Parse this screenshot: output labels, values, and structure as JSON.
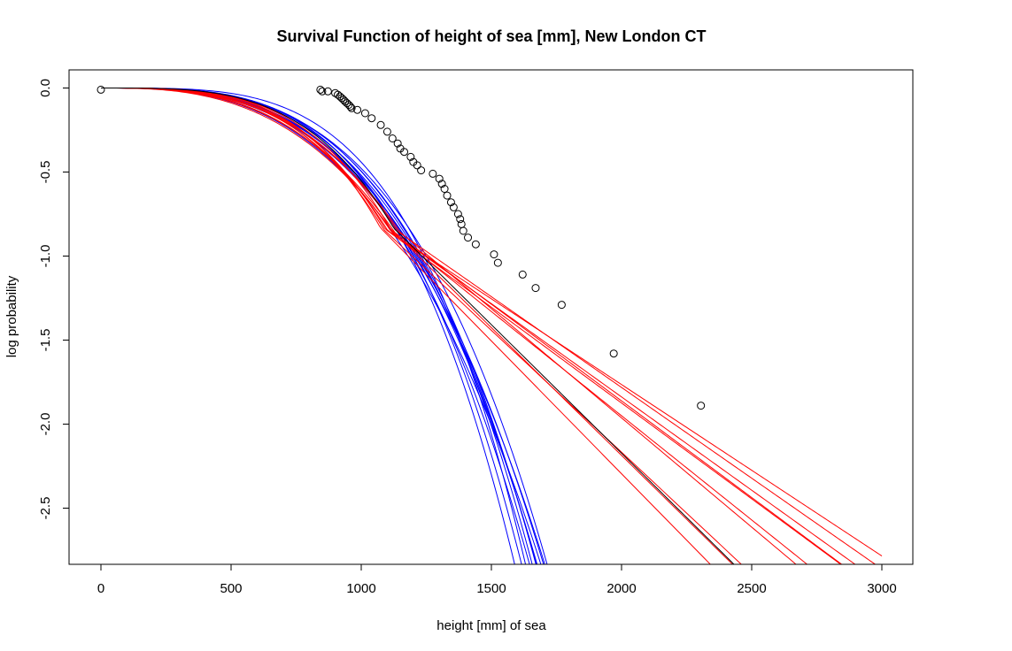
{
  "chart_data": {
    "type": "scatter",
    "title": "Survival Function of height of sea [mm], New London CT",
    "xlabel": "height [mm] of sea",
    "ylabel": "log probability",
    "xlim": [
      0,
      3000
    ],
    "ylim": [
      -2.85,
      0.05
    ],
    "xticks": [
      0,
      500,
      1000,
      1500,
      2000,
      2500,
      3000
    ],
    "xtick_labels": [
      "0",
      "500",
      "1000",
      "1500",
      "2000",
      "2500",
      "3000"
    ],
    "yticks": [
      0.0,
      -0.5,
      -1.0,
      -1.5,
      -2.0,
      -2.5
    ],
    "ytick_labels": [
      "0.0",
      "-0.5",
      "-1.0",
      "-1.5",
      "-2.0",
      "-2.5"
    ],
    "grid": false,
    "colors": {
      "points": "#000000",
      "black_curve": "#000000",
      "blue_curves": "#0000ff",
      "red_curves": "#ff0000"
    },
    "points": {
      "x": [
        0,
        843,
        850,
        872,
        900,
        910,
        918,
        925,
        932,
        938,
        945,
        952,
        958,
        963,
        985,
        1015,
        1040,
        1075,
        1100,
        1120,
        1140,
        1150,
        1165,
        1190,
        1200,
        1215,
        1230,
        1275,
        1300,
        1310,
        1320,
        1330,
        1345,
        1355,
        1372,
        1380,
        1385,
        1392,
        1410,
        1440,
        1510,
        1525,
        1620,
        1670,
        1770,
        1970,
        2305
      ],
      "y": [
        -0.01,
        -0.01,
        -0.02,
        -0.02,
        -0.03,
        -0.04,
        -0.05,
        -0.06,
        -0.07,
        -0.08,
        -0.09,
        -0.1,
        -0.11,
        -0.12,
        -0.13,
        -0.15,
        -0.18,
        -0.22,
        -0.26,
        -0.3,
        -0.33,
        -0.36,
        -0.38,
        -0.41,
        -0.44,
        -0.46,
        -0.49,
        -0.51,
        -0.54,
        -0.57,
        -0.6,
        -0.64,
        -0.68,
        -0.71,
        -0.75,
        -0.78,
        -0.81,
        -0.85,
        -0.89,
        -0.93,
        -0.99,
        -1.04,
        -1.11,
        -1.19,
        -1.29,
        -1.58,
        -1.89
      ]
    },
    "black_curve": {
      "scale": 1185,
      "shape": 3.5,
      "tail": 1.53
    },
    "blue_curves": [
      {
        "scale": 1210,
        "shape": 3.2
      },
      {
        "scale": 1220,
        "shape": 3.3
      },
      {
        "scale": 1190,
        "shape": 3.6
      },
      {
        "scale": 1205,
        "shape": 3.0
      },
      {
        "scale": 1230,
        "shape": 3.4
      },
      {
        "scale": 1200,
        "shape": 3.5
      },
      {
        "scale": 1215,
        "shape": 3.1
      },
      {
        "scale": 1195,
        "shape": 3.25
      },
      {
        "scale": 1225,
        "shape": 3.45
      },
      {
        "scale": 1250,
        "shape": 3.3
      },
      {
        "scale": 1180,
        "shape": 2.9
      },
      {
        "scale": 1240,
        "shape": 3.8
      }
    ],
    "red_curves": [
      {
        "scale": 1160,
        "shape": 3.2,
        "tail": 1.02
      },
      {
        "scale": 1175,
        "shape": 3.0,
        "tail": 1.11
      },
      {
        "scale": 1150,
        "shape": 3.4,
        "tail": 1.14
      },
      {
        "scale": 1190,
        "shape": 2.9,
        "tail": 1.15
      },
      {
        "scale": 1200,
        "shape": 3.1,
        "tail": 1.08
      },
      {
        "scale": 1145,
        "shape": 3.3,
        "tail": 1.45
      },
      {
        "scale": 1170,
        "shape": 3.5,
        "tail": 1.52
      },
      {
        "scale": 1130,
        "shape": 3.6,
        "tail": 1.58
      },
      {
        "scale": 1185,
        "shape": 2.8,
        "tail": 1.24
      },
      {
        "scale": 1210,
        "shape": 3.0,
        "tail": 1.3
      }
    ]
  }
}
